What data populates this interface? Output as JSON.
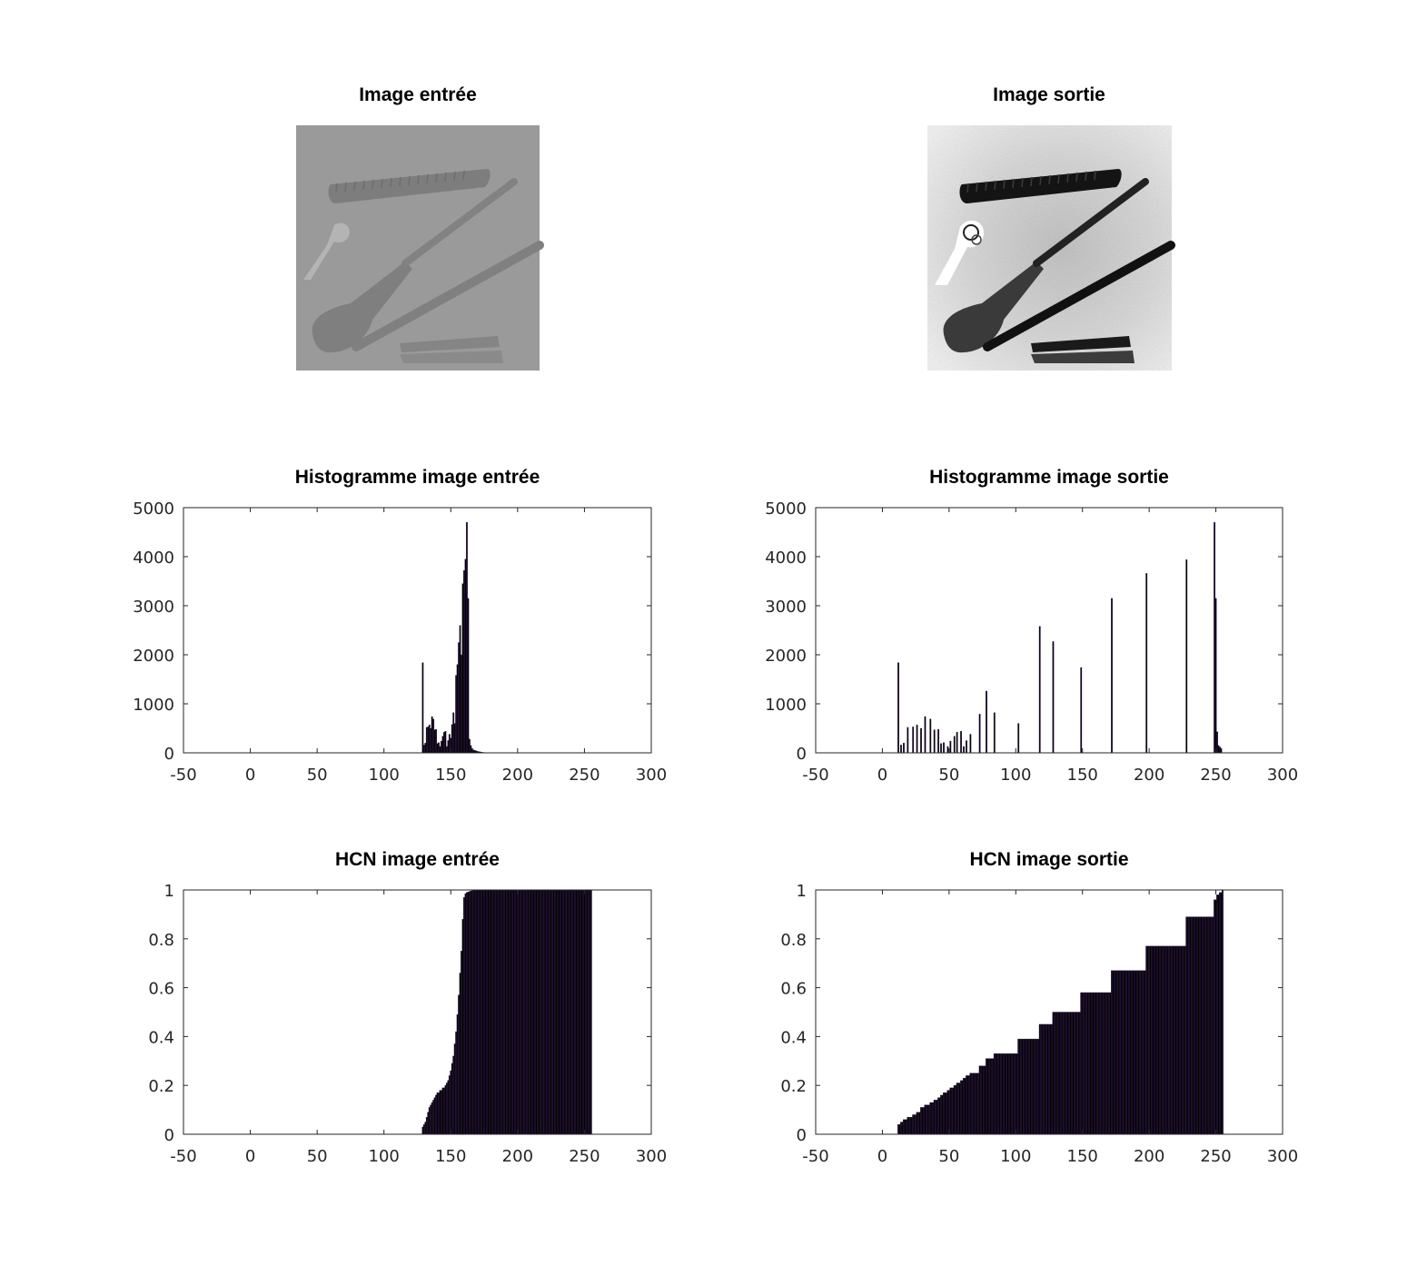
{
  "figure": {
    "panels": [
      {
        "id": "img-in",
        "title": "Image entrée",
        "kind": "image",
        "variant": "input"
      },
      {
        "id": "img-out",
        "title": "Image sortie",
        "kind": "image",
        "variant": "output"
      }
    ]
  },
  "chart_data": [
    {
      "type": "bar",
      "title": "Histogramme image entrée",
      "xlim": [
        -50,
        300
      ],
      "ylim": [
        0,
        5000
      ],
      "xticks": [
        -50,
        0,
        50,
        100,
        150,
        200,
        250,
        300
      ],
      "yticks": [
        0,
        1000,
        2000,
        3000,
        4000,
        5000
      ],
      "x": [
        129,
        130,
        131,
        132,
        133,
        134,
        135,
        136,
        137,
        138,
        139,
        140,
        141,
        142,
        143,
        144,
        145,
        146,
        147,
        148,
        149,
        150,
        151,
        152,
        153,
        154,
        155,
        156,
        157,
        158,
        159,
        160,
        161,
        162,
        163,
        164,
        165,
        166,
        167,
        168,
        169,
        170,
        171,
        172,
        173,
        174,
        175,
        176,
        177,
        178
      ],
      "values": [
        1840,
        160,
        200,
        520,
        530,
        570,
        500,
        740,
        690,
        470,
        480,
        190,
        210,
        130,
        240,
        340,
        420,
        440,
        130,
        250,
        380,
        300,
        580,
        820,
        600,
        1580,
        1800,
        2250,
        2600,
        2000,
        3450,
        3720,
        3950,
        4700,
        3150,
        280,
        150,
        90,
        60,
        50,
        40,
        30,
        25,
        20,
        15,
        10,
        8,
        5,
        4,
        3
      ]
    },
    {
      "type": "bar",
      "title": "Histogramme image sortie",
      "xlim": [
        -50,
        300
      ],
      "ylim": [
        0,
        5000
      ],
      "xticks": [
        -50,
        0,
        50,
        100,
        150,
        200,
        250,
        300
      ],
      "yticks": [
        0,
        1000,
        2000,
        3000,
        4000,
        5000
      ],
      "x": [
        12,
        14,
        16,
        19,
        23,
        26,
        29,
        32,
        36,
        39,
        42,
        44,
        46,
        49,
        51,
        54,
        56,
        59,
        61,
        63,
        66,
        73,
        78,
        84,
        102,
        118,
        128,
        149,
        172,
        198,
        228,
        249,
        250,
        251,
        252,
        253,
        254
      ],
      "values": [
        1840,
        160,
        200,
        520,
        530,
        570,
        500,
        740,
        690,
        470,
        480,
        190,
        210,
        130,
        240,
        340,
        420,
        440,
        130,
        250,
        380,
        790,
        1260,
        820,
        600,
        2580,
        2270,
        1740,
        3150,
        3660,
        3940,
        4700,
        3150,
        430,
        150,
        120,
        90
      ]
    },
    {
      "type": "bar",
      "title": "HCN image entrée",
      "xlim": [
        -50,
        300
      ],
      "ylim": [
        0,
        1
      ],
      "xticks": [
        -50,
        0,
        50,
        100,
        150,
        200,
        250,
        300
      ],
      "yticks": [
        0,
        0.2,
        0.4,
        0.6,
        0.8,
        1
      ],
      "x_range": [
        129,
        255
      ],
      "values": [
        0.03,
        0.04,
        0.05,
        0.07,
        0.09,
        0.11,
        0.12,
        0.13,
        0.14,
        0.15,
        0.16,
        0.17,
        0.17,
        0.18,
        0.18,
        0.19,
        0.19,
        0.2,
        0.21,
        0.22,
        0.24,
        0.26,
        0.29,
        0.32,
        0.37,
        0.42,
        0.49,
        0.57,
        0.66,
        0.75,
        0.88,
        0.97,
        0.985,
        0.99,
        0.992,
        0.994,
        0.996,
        0.997,
        0.998,
        0.999,
        1,
        1,
        1,
        1,
        1,
        1,
        1,
        1,
        1,
        1,
        1,
        1,
        1,
        1,
        1,
        1,
        1,
        1,
        1,
        1,
        1,
        1,
        1,
        1,
        1,
        1,
        1,
        1,
        1,
        1,
        1,
        1,
        1,
        1,
        1,
        1,
        1,
        1,
        1,
        1,
        1,
        1,
        1,
        1,
        1,
        1,
        1,
        1,
        1,
        1,
        1,
        1,
        1,
        1,
        1,
        1,
        1,
        1,
        1,
        1,
        1,
        1,
        1,
        1,
        1,
        1,
        1,
        1,
        1,
        1,
        1,
        1,
        1,
        1,
        1,
        1,
        1,
        1,
        1,
        1,
        1,
        1,
        1,
        1,
        1,
        1,
        1
      ]
    },
    {
      "type": "bar",
      "title": "HCN image sortie",
      "xlim": [
        -50,
        300
      ],
      "ylim": [
        0,
        1
      ],
      "xticks": [
        -50,
        0,
        50,
        100,
        150,
        200,
        250,
        300
      ],
      "yticks": [
        0,
        0.2,
        0.4,
        0.6,
        0.8,
        1
      ],
      "steps": [
        {
          "x": 12,
          "y": 0.04
        },
        {
          "x": 14,
          "y": 0.05
        },
        {
          "x": 16,
          "y": 0.06
        },
        {
          "x": 19,
          "y": 0.07
        },
        {
          "x": 23,
          "y": 0.08
        },
        {
          "x": 26,
          "y": 0.09
        },
        {
          "x": 29,
          "y": 0.11
        },
        {
          "x": 32,
          "y": 0.12
        },
        {
          "x": 36,
          "y": 0.13
        },
        {
          "x": 39,
          "y": 0.14
        },
        {
          "x": 42,
          "y": 0.15
        },
        {
          "x": 44,
          "y": 0.16
        },
        {
          "x": 46,
          "y": 0.17
        },
        {
          "x": 49,
          "y": 0.18
        },
        {
          "x": 51,
          "y": 0.19
        },
        {
          "x": 54,
          "y": 0.2
        },
        {
          "x": 56,
          "y": 0.21
        },
        {
          "x": 59,
          "y": 0.22
        },
        {
          "x": 61,
          "y": 0.23
        },
        {
          "x": 63,
          "y": 0.24
        },
        {
          "x": 66,
          "y": 0.25
        },
        {
          "x": 73,
          "y": 0.28
        },
        {
          "x": 78,
          "y": 0.31
        },
        {
          "x": 84,
          "y": 0.33
        },
        {
          "x": 102,
          "y": 0.39
        },
        {
          "x": 118,
          "y": 0.45
        },
        {
          "x": 128,
          "y": 0.5
        },
        {
          "x": 149,
          "y": 0.58
        },
        {
          "x": 172,
          "y": 0.67
        },
        {
          "x": 198,
          "y": 0.77
        },
        {
          "x": 228,
          "y": 0.89
        },
        {
          "x": 249,
          "y": 0.96
        },
        {
          "x": 251,
          "y": 0.98
        },
        {
          "x": 253,
          "y": 0.99
        },
        {
          "x": 255,
          "y": 1.0
        }
      ]
    }
  ]
}
